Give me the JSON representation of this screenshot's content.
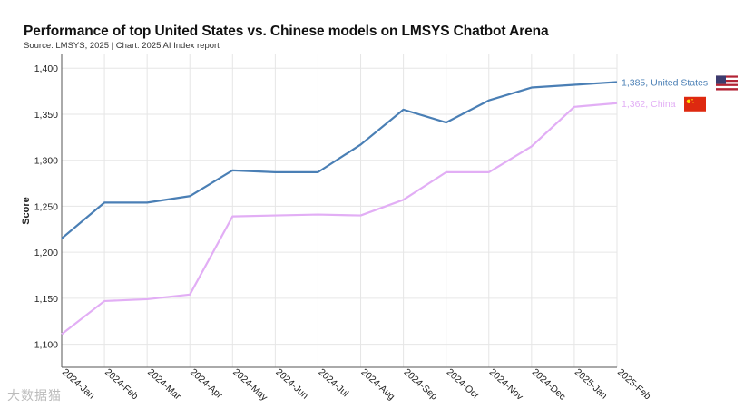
{
  "header": {
    "title": "Performance of top United States vs. Chinese models on LMSYS Chatbot Arena",
    "source": "Source: LMSYS, 2025 | Chart: 2025 AI Index report"
  },
  "watermark": "大数据猫",
  "chart_data": {
    "type": "line",
    "title": "Performance of top United States vs. Chinese models on LMSYS Chatbot Arena",
    "xlabel": "",
    "ylabel": "Score",
    "ylim": [
      1075,
      1415
    ],
    "yticks": [
      1100,
      1150,
      1200,
      1250,
      1300,
      1350,
      1400
    ],
    "ytick_labels": [
      "1,100",
      "1,150",
      "1,200",
      "1,250",
      "1,300",
      "1,350",
      "1,400"
    ],
    "categories": [
      "2024-Jan",
      "2024-Feb",
      "2024-Mar",
      "2024-Apr",
      "2024-May",
      "2024-Jun",
      "2024-Jul",
      "2024-Aug",
      "2024-Sep",
      "2024-Oct",
      "2024-Nov",
      "2024-Dec",
      "2025-Jan",
      "2025-Feb"
    ],
    "grid": true,
    "series": [
      {
        "name": "United States",
        "color": "#4a7fb5",
        "end_label": "1,385, United States",
        "flag": "us-flag",
        "values": [
          1215,
          1254,
          1254,
          1261,
          1289,
          1287,
          1287,
          1317,
          1355,
          1341,
          1365,
          1379,
          1382,
          1385
        ]
      },
      {
        "name": "China",
        "color": "#e2aef5",
        "end_label": "1,362, China",
        "flag": "china-flag",
        "values": [
          1111,
          1147,
          1149,
          1154,
          1239,
          1240,
          1241,
          1240,
          1257,
          1287,
          1287,
          1315,
          1358,
          1362
        ]
      }
    ]
  }
}
